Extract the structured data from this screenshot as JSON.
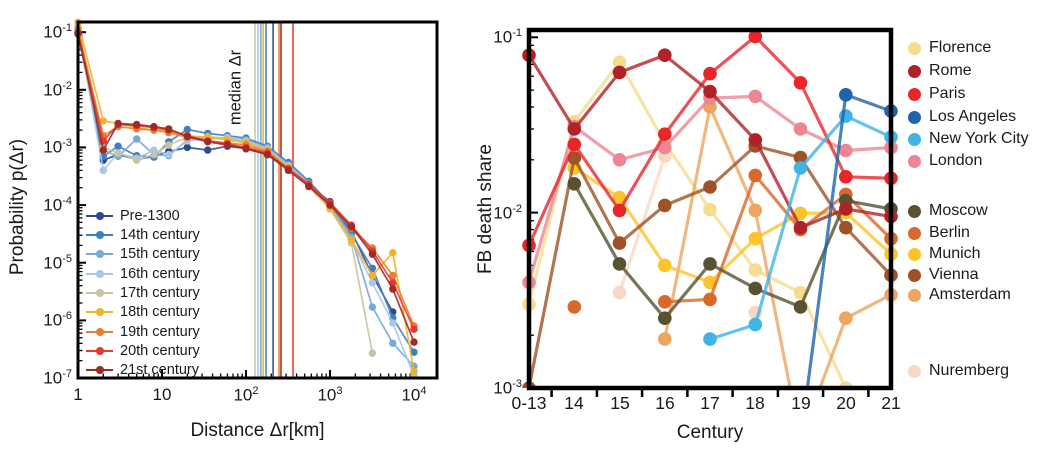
{
  "figure": {
    "description": "Two-panel scientific figure: left log-log distance distribution by century, right log-scale FB death share per city per century"
  },
  "chart_data": [
    {
      "type": "line",
      "panel": "left",
      "title": "",
      "xlabel": "Distance Δr[km]",
      "ylabel": "Probability p(Δr)",
      "annotation": "median Δr",
      "xscale": "log",
      "yscale": "log",
      "xlim": [
        1,
        18000
      ],
      "ylim": [
        1e-07,
        0.15
      ],
      "xticks": [
        1,
        10,
        100,
        1000,
        10000
      ],
      "yticks_exp": [
        -1,
        -2,
        -3,
        -4,
        -5,
        -6,
        -7
      ],
      "grid": false,
      "legend_position": "lower-left-inside",
      "x": [
        1,
        2,
        3,
        5,
        8,
        12,
        20,
        35,
        60,
        100,
        180,
        320,
        560,
        1000,
        1800,
        3200,
        5600,
        10000,
        14000
      ],
      "series": [
        {
          "name": "Pre-1300",
          "color": "#2f4b8f",
          "median_km": 210,
          "values": [
            0.105,
            0.0006,
            0.00075,
            0.00062,
            0.0007,
            0.00085,
            0.001,
            0.0009,
            0.00105,
            0.00095,
            0.00075,
            0.00042,
            0.00022,
            0.000115,
            3.5e-05,
            6e-06,
            1.4e-06,
            null,
            null
          ]
        },
        {
          "name": "14th century",
          "color": "#3f7fc1",
          "median_km": 173,
          "values": [
            0.092,
            0.0007,
            0.00105,
            0.00072,
            0.00068,
            0.00125,
            0.00205,
            0.00175,
            0.0016,
            0.00145,
            0.00105,
            0.00055,
            0.00026,
            0.000105,
            3.2e-05,
            8e-06,
            1.1e-06,
            2.8e-07,
            null
          ]
        },
        {
          "name": "15th century",
          "color": "#74a9d8",
          "median_km": 150,
          "values": [
            0.098,
            0.0009,
            0.0007,
            0.0014,
            0.00075,
            0.00072,
            0.00135,
            0.0015,
            0.00145,
            0.00135,
            0.001,
            0.0005,
            0.00024,
            9.5e-05,
            2.8e-05,
            1.7e-06,
            4e-07,
            1.6e-07,
            null
          ]
        },
        {
          "name": "16th century",
          "color": "#a9c6e8",
          "median_km": 139,
          "values": [
            0.12,
            0.0004,
            0.0008,
            0.00065,
            0.0009,
            0.00075,
            0.0013,
            0.0014,
            0.0015,
            0.0013,
            0.00095,
            0.00048,
            0.00023,
            9e-05,
            2.5e-05,
            4.5e-06,
            9e-07,
            1.1e-07,
            null
          ]
        },
        {
          "name": "17th century",
          "color": "#c9c3a0",
          "median_km": 128,
          "values": [
            0.13,
            0.001,
            0.0008,
            0.0006,
            0.00075,
            0.0011,
            0.0015,
            0.00155,
            0.0014,
            0.00125,
            0.0009,
            0.00045,
            0.00021,
            8.5e-05,
            2.2e-05,
            2.7e-07,
            null,
            null,
            null
          ]
        },
        {
          "name": "18th century",
          "color": "#f3b229",
          "median_km": 160,
          "values": [
            0.148,
            0.0029,
            0.0026,
            0.0022,
            0.002,
            0.0019,
            0.0016,
            0.0015,
            0.00135,
            0.0012,
            0.0009,
            0.00045,
            0.00022,
            9e-05,
            2.5e-05,
            6e-06,
            1.5e-05,
            1.3e-07,
            null
          ]
        },
        {
          "name": "19th century",
          "color": "#e87e30",
          "median_km": 247,
          "values": [
            0.112,
            0.0016,
            0.0023,
            0.0021,
            0.002,
            0.0018,
            0.0015,
            0.0013,
            0.0012,
            0.0011,
            0.00085,
            0.00042,
            0.00022,
            0.0001,
            4e-05,
            1.8e-05,
            6e-06,
            8e-07,
            null
          ]
        },
        {
          "name": "20th century",
          "color": "#e8392f",
          "median_km": 363,
          "values": [
            0.094,
            0.0013,
            0.0025,
            0.0024,
            0.0022,
            0.002,
            0.0016,
            0.0013,
            0.00115,
            0.001,
            0.0008,
            0.00043,
            0.00023,
            0.00011,
            4.5e-05,
            1.6e-05,
            4.5e-06,
            7e-07,
            null
          ]
        },
        {
          "name": "21st century",
          "color": "#9e2b25",
          "median_km": 261,
          "values": [
            0.096,
            0.0009,
            0.0026,
            0.0025,
            0.0023,
            0.0021,
            0.00155,
            0.00125,
            0.0011,
            0.00095,
            0.00075,
            0.0004,
            0.00021,
            0.0001,
            4.2e-05,
            1.4e-05,
            3.5e-06,
            4.2e-07,
            null
          ]
        }
      ]
    },
    {
      "type": "line",
      "panel": "right",
      "title": "",
      "xlabel": "Century",
      "ylabel": "FB death share",
      "yscale": "log",
      "ylim": [
        0.001,
        0.11
      ],
      "yticks_exp": [
        -1,
        -2,
        -3
      ],
      "grid": false,
      "legend_position": "right-outside",
      "categories": [
        "0-13",
        "14",
        "15",
        "16",
        "17",
        "18",
        "19",
        "20",
        "21"
      ],
      "series": [
        {
          "name": "Florence",
          "color": "#f6dc8d",
          "values": [
            0.003,
            0.033,
            0.072,
            0.025,
            0.0104,
            0.0047,
            0.0035,
            0.001,
            0.0004
          ]
        },
        {
          "name": "Rome",
          "color": "#b02228",
          "values": [
            0.079,
            0.03,
            0.063,
            0.079,
            0.049,
            0.026,
            0.0082,
            0.0105,
            0.0095
          ]
        },
        {
          "name": "Paris",
          "color": "#e8262a",
          "values": [
            0.0065,
            0.0245,
            0.0103,
            0.028,
            0.062,
            0.101,
            0.055,
            0.016,
            0.0157
          ]
        },
        {
          "name": "Los Angeles",
          "color": "#1f63ae",
          "values": [
            null,
            null,
            null,
            null,
            null,
            null,
            0.0005,
            0.047,
            0.038
          ]
        },
        {
          "name": "New York City",
          "color": "#41b3e6",
          "values": [
            null,
            null,
            null,
            null,
            0.0019,
            0.0023,
            0.018,
            0.0355,
            0.027
          ]
        },
        {
          "name": "London",
          "color": "#ec8693",
          "values": [
            0.004,
            0.031,
            0.02,
            0.0235,
            0.045,
            0.046,
            0.03,
            0.0226,
            0.0235
          ]
        },
        {
          "name": "Moscow",
          "color": "#575331",
          "values": [
            null,
            0.0146,
            0.0051,
            0.0025,
            0.0051,
            0.0037,
            0.0029,
            0.0117,
            0.0105
          ]
        },
        {
          "name": "Berlin",
          "color": "#d8692d",
          "values": [
            null,
            0.0029,
            null,
            0.0031,
            0.0032,
            0.0163,
            0.008,
            0.0127,
            0.0071
          ]
        },
        {
          "name": "Munich",
          "color": "#fdc32a",
          "values": [
            null,
            0.018,
            0.0122,
            0.005,
            0.004,
            0.0071,
            0.0099,
            0.01,
            0.0058
          ]
        },
        {
          "name": "Vienna",
          "color": "#9e5226",
          "values": [
            0.001,
            0.0205,
            0.0067,
            0.011,
            0.014,
            0.024,
            0.0206,
            0.0082,
            0.0044
          ]
        },
        {
          "name": "Amsterdam",
          "color": "#eda55f",
          "values": [
            null,
            null,
            null,
            0.0019,
            0.04,
            0.0103,
            0.0005,
            0.0025,
            0.0034
          ]
        },
        {
          "name": "Nuremberg",
          "color": "#f6d9c5",
          "values": [
            null,
            null,
            0.0035,
            0.021,
            null,
            0.0027,
            null,
            null,
            null
          ]
        }
      ],
      "legend_groups": [
        [
          0,
          1,
          2,
          3,
          4,
          5
        ],
        [
          6,
          7,
          8,
          9,
          10
        ],
        [
          11
        ]
      ]
    }
  ]
}
